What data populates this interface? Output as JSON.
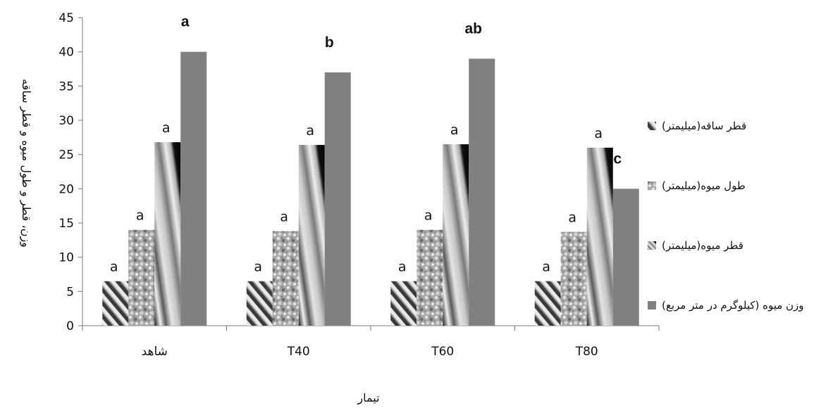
{
  "chart_data": {
    "type": "bar",
    "categories": [
      "شاهد",
      "T40",
      "T60",
      "T80"
    ],
    "series": [
      {
        "name": "(میلیمتر)قطر ساقه",
        "values": [
          6.5,
          6.5,
          6.5,
          6.5
        ],
        "labels": [
          "a",
          "a",
          "a",
          "a"
        ],
        "pattern": "stripe-fine"
      },
      {
        "name": "(میلیمتر)طول میوه",
        "values": [
          14,
          13.8,
          14,
          13.7
        ],
        "labels": [
          "a",
          "a",
          "a",
          "a"
        ],
        "pattern": "texture"
      },
      {
        "name": "(میلیمتر)قطر میوه",
        "values": [
          26.8,
          26.4,
          26.5,
          26
        ],
        "labels": [
          "a",
          "a",
          "a",
          "a"
        ],
        "pattern": "gradient-diagonal"
      },
      {
        "name": "(کیلوگرم در متر مربع) وزن میوه",
        "values": [
          40,
          37,
          39,
          20
        ],
        "labels": [
          "a",
          "b",
          "ab",
          "c"
        ],
        "pattern": "solid",
        "color": "#808080"
      }
    ],
    "xlabel": "تیمار",
    "ylabel": "وزن، قطر و طول میوه و قطر ساقه",
    "ylim": [
      0,
      45
    ],
    "yticks": [
      "0",
      "5",
      "10",
      "15",
      "20",
      "25",
      "30",
      "35",
      "40",
      "45"
    ],
    "grid": false,
    "legend": "right"
  }
}
